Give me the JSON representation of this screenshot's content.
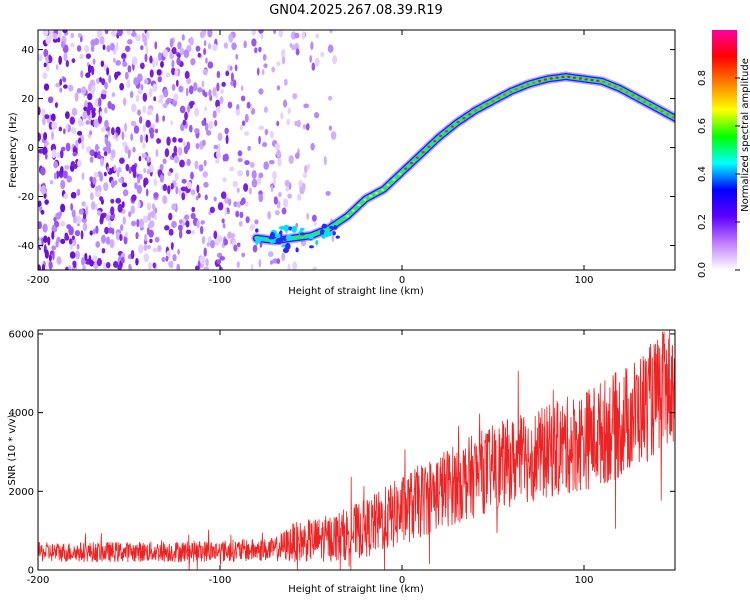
{
  "page_title": "GN04.2025.267.08.39.R19",
  "colors": {
    "snr_line": "#ee2222",
    "axis": "#000000",
    "track": "#22dd55",
    "scatter": "#7a1fe0"
  },
  "chart_data": [
    {
      "type": "heatmap",
      "title": "GN04.2025.267.08.39.R19",
      "xlabel": "Height of straight line (km)",
      "ylabel": "Frequency (Hz)",
      "xlim": [
        -200,
        150
      ],
      "ylim": [
        -50,
        48
      ],
      "x_ticks": [
        -200,
        -100,
        0,
        100
      ],
      "x_tick_labels": [
        "-200",
        "-100",
        "0",
        "100"
      ],
      "y_ticks": [
        -40,
        -20,
        0,
        20,
        40
      ],
      "y_tick_labels": [
        "-40",
        "-20",
        "0",
        "20",
        "40"
      ],
      "colorbar": {
        "label": "Normalized spectral amplitude",
        "range": [
          0,
          1
        ],
        "ticks": [
          0.0,
          0.2,
          0.4,
          0.6,
          0.8
        ],
        "tick_labels": [
          "0.0",
          "0.2",
          "0.4",
          "0.6",
          "0.8"
        ],
        "colors": [
          "#ffffff",
          "#c080ff",
          "#6000ff",
          "#0000ff",
          "#00ffff",
          "#00ff00",
          "#ffff00",
          "#ff8000",
          "#ff0000",
          "#ff00a0"
        ]
      },
      "noise_region": {
        "x_range": [
          -200,
          -35
        ],
        "y_range": [
          -50,
          48
        ]
      },
      "track": {
        "x": [
          -80,
          -70,
          -60,
          -50,
          -40,
          -30,
          -20,
          -10,
          0,
          10,
          20,
          30,
          40,
          50,
          60,
          70,
          80,
          90,
          100,
          110,
          120,
          130,
          140,
          150
        ],
        "y": [
          -37,
          -38,
          -37,
          -36,
          -33,
          -28,
          -21,
          -17,
          -10,
          -3,
          4,
          10,
          15,
          19,
          23,
          26,
          28,
          29,
          28,
          27,
          24,
          20,
          16,
          12
        ]
      }
    },
    {
      "type": "line",
      "xlabel": "Height of straight line (km)",
      "ylabel": "SNR (10 * v/v)",
      "xlim": [
        -200,
        150
      ],
      "ylim": [
        0,
        6100
      ],
      "x_ticks": [
        -200,
        -100,
        0,
        100
      ],
      "x_tick_labels": [
        "-200",
        "-100",
        "0",
        "100"
      ],
      "y_ticks": [
        0,
        2000,
        4000,
        6000
      ],
      "y_tick_labels": [
        "0",
        "2000",
        "4000",
        "6000"
      ],
      "envelope": {
        "x": [
          -200,
          -150,
          -100,
          -70,
          -60,
          -50,
          -40,
          -20,
          0,
          20,
          50,
          80,
          100,
          120,
          140,
          150
        ],
        "mean": [
          450,
          460,
          480,
          520,
          700,
          750,
          800,
          1050,
          1500,
          2000,
          2600,
          3000,
          3300,
          3700,
          4400,
          4800
        ],
        "amp": [
          250,
          260,
          280,
          300,
          500,
          550,
          600,
          750,
          900,
          1000,
          1100,
          1200,
          1300,
          1400,
          1500,
          1600
        ]
      }
    }
  ]
}
